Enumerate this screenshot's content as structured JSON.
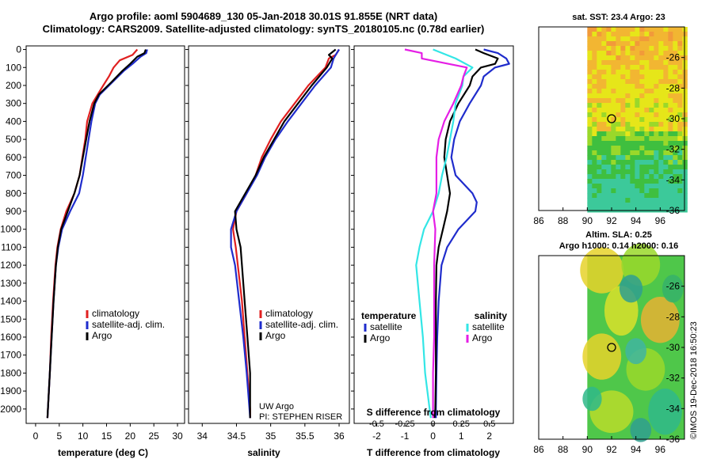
{
  "header": {
    "line1": "Argo profile: aoml 5904689_130 05-Jan-2018 30.01S 91.855E (NRT data)",
    "line2": "Climatology: CARS2009. Satellite-adjusted climatology: synTS_20180105.nc (0.78d earlier)"
  },
  "colors": {
    "climatology": "#e02020",
    "satellite": "#1f2ccc",
    "argo": "#000000",
    "cyan": "#33e6e6",
    "magenta": "#e51ee5"
  },
  "chart_data": [
    {
      "type": "line",
      "id": "temperature",
      "xlabel": "temperature (deg C)",
      "ylabel": "",
      "xlim": [
        -2,
        31.5
      ],
      "ylim": [
        2080,
        -20
      ],
      "xticks": [
        "0",
        "5",
        "10",
        "15",
        "20",
        "25",
        "30"
      ],
      "yticks": [
        "0",
        "100",
        "200",
        "300",
        "400",
        "500",
        "600",
        "700",
        "800",
        "900",
        "1000",
        "1100",
        "1200",
        "1300",
        "1400",
        "1500",
        "1600",
        "1700",
        "1800",
        "1900",
        "2000"
      ],
      "legend": [
        "climatology",
        "satellite-adj. clim.",
        "Argo"
      ],
      "series": [
        {
          "name": "climatology",
          "depth": [
            0,
            30,
            60,
            100,
            150,
            200,
            300,
            400,
            500,
            600,
            700,
            800,
            900,
            1000,
            1100,
            1200,
            1400,
            1600,
            1800,
            2000,
            2050
          ],
          "values": [
            21.5,
            20.5,
            17.8,
            16.5,
            15.5,
            14.3,
            12.0,
            10.9,
            10.5,
            9.9,
            9.3,
            8.2,
            6.5,
            5.3,
            4.6,
            4.2,
            3.7,
            3.3,
            3.0,
            2.6,
            2.5
          ]
        },
        {
          "name": "satellite-adj. clim.",
          "depth": [
            0,
            20,
            40,
            80,
            120,
            180,
            250,
            300,
            400,
            500,
            600,
            700,
            800,
            900,
            1000,
            1100,
            1200,
            1400,
            1600,
            1800,
            2000,
            2050
          ],
          "values": [
            23.6,
            23.4,
            22.2,
            20.5,
            18.6,
            16.3,
            13.6,
            12.6,
            11.8,
            11.2,
            10.6,
            10.0,
            9.2,
            7.3,
            5.6,
            4.8,
            4.3,
            3.8,
            3.4,
            3.0,
            2.6,
            2.5
          ]
        },
        {
          "name": "Argo",
          "depth": [
            0,
            20,
            40,
            80,
            120,
            180,
            250,
            300,
            400,
            500,
            600,
            700,
            800,
            900,
            1000,
            1100,
            1200,
            1400,
            1600,
            1800,
            2000,
            2050
          ],
          "values": [
            23.3,
            23.0,
            21.5,
            20.0,
            18.3,
            16.1,
            13.4,
            12.4,
            11.4,
            10.7,
            10.0,
            9.3,
            8.2,
            6.8,
            5.4,
            4.7,
            4.3,
            3.8,
            3.4,
            3.0,
            2.6,
            2.5
          ]
        }
      ]
    },
    {
      "type": "line",
      "id": "salinity",
      "xlabel": "salinity",
      "ylabel": "",
      "xlim": [
        33.8,
        36.15
      ],
      "ylim": [
        2080,
        -20
      ],
      "xticks": [
        "34",
        "34.5",
        "35",
        "35.5",
        "36"
      ],
      "legend": [
        "climatology",
        "satellite-adj. clim.",
        "Argo"
      ],
      "annotations": [
        "UW Argo",
        "PI: STEPHEN RISER"
      ],
      "series": [
        {
          "name": "climatology",
          "depth": [
            0,
            30,
            50,
            100,
            200,
            300,
            400,
            500,
            600,
            700,
            800,
            900,
            1000,
            1100,
            1200,
            1400,
            1600,
            1800,
            2000,
            2050
          ],
          "values": [
            36.0,
            35.95,
            35.85,
            35.8,
            35.55,
            35.35,
            35.15,
            35.0,
            34.87,
            34.78,
            34.65,
            34.5,
            34.45,
            34.49,
            34.52,
            34.58,
            34.62,
            34.66,
            34.7,
            34.7
          ]
        },
        {
          "name": "satellite-adj. clim.",
          "depth": [
            0,
            30,
            50,
            100,
            200,
            300,
            400,
            500,
            600,
            700,
            800,
            900,
            1000,
            1100,
            1200,
            1400,
            1600,
            1800,
            2000,
            2050
          ],
          "values": [
            36.0,
            35.95,
            35.92,
            35.88,
            35.65,
            35.45,
            35.25,
            35.07,
            34.92,
            34.8,
            34.65,
            34.5,
            34.42,
            34.42,
            34.48,
            34.54,
            34.6,
            34.65,
            34.69,
            34.7
          ]
        },
        {
          "name": "Argo",
          "depth": [
            0,
            30,
            50,
            100,
            200,
            300,
            400,
            500,
            600,
            700,
            800,
            900,
            1000,
            1100,
            1200,
            1400,
            1600,
            1800,
            2000,
            2050
          ],
          "values": [
            35.95,
            35.85,
            35.9,
            35.82,
            35.6,
            35.4,
            35.2,
            35.05,
            34.9,
            34.78,
            34.63,
            34.48,
            34.5,
            34.56,
            34.58,
            34.62,
            34.66,
            34.7,
            34.7,
            34.7
          ]
        }
      ]
    },
    {
      "type": "line",
      "id": "difference",
      "xlabel": "T difference from climatology",
      "xlabel_top": "S difference from climatology",
      "xlim": [
        -2.8,
        2.85
      ],
      "ylim": [
        2080,
        -20
      ],
      "xticks": [
        "-2",
        "-1",
        "0",
        "1",
        "2"
      ],
      "xticks_salinity": [
        "-0.5",
        "-0.25",
        "0",
        "0.25",
        "0.5"
      ],
      "legend_left_title": "temperature",
      "legend_right_title": "salinity",
      "legend": [
        "satellite",
        "Argo",
        "satellite",
        "Argo"
      ],
      "series": [
        {
          "name": "temperature satellite",
          "depth": [
            0,
            20,
            50,
            80,
            100,
            150,
            200,
            300,
            400,
            500,
            600,
            700,
            800,
            850,
            900,
            1000,
            1100,
            1200,
            1400,
            1600,
            1800,
            2000,
            2050
          ],
          "values": [
            1.8,
            2.3,
            2.6,
            2.7,
            2.2,
            1.8,
            1.7,
            1.3,
            0.95,
            0.75,
            0.65,
            0.8,
            1.4,
            1.55,
            1.5,
            0.9,
            0.5,
            0.3,
            0.2,
            0.15,
            0.12,
            0.1,
            0.1
          ]
        },
        {
          "name": "temperature Argo",
          "depth": [
            0,
            20,
            50,
            80,
            100,
            150,
            200,
            300,
            400,
            500,
            600,
            700,
            800,
            900,
            1000,
            1100,
            1200,
            1400,
            1600,
            1800,
            2000,
            2050
          ],
          "values": [
            1.5,
            1.8,
            2.3,
            2.2,
            1.7,
            1.4,
            1.3,
            0.9,
            0.6,
            0.45,
            0.4,
            0.5,
            0.6,
            0.5,
            0.35,
            0.2,
            0.12,
            0.1,
            0.1,
            0.1,
            0.08,
            0.05
          ]
        },
        {
          "name": "salinity satellite",
          "depth": [
            0,
            50,
            100,
            150,
            200,
            300,
            400,
            500,
            600,
            700,
            800,
            900,
            1000,
            1100,
            1200,
            1400,
            1600,
            1800,
            2000,
            2050
          ],
          "values": [
            0.0,
            0.2,
            0.35,
            0.27,
            0.26,
            0.2,
            0.18,
            0.15,
            0.12,
            0.08,
            0.05,
            0.0,
            -0.08,
            -0.12,
            -0.15,
            -0.12,
            -0.09,
            -0.07,
            -0.03,
            -0.02
          ]
        },
        {
          "name": "salinity Argo",
          "depth": [
            0,
            20,
            50,
            100,
            150,
            200,
            300,
            400,
            500,
            600,
            700,
            800,
            900,
            1000,
            1200,
            1400,
            1600,
            1800,
            2000,
            2050
          ],
          "values": [
            -0.25,
            -0.1,
            -0.1,
            0.3,
            0.27,
            0.25,
            0.18,
            0.1,
            0.05,
            0.03,
            0.03,
            0.03,
            0.0,
            0.02,
            0.01,
            0.01,
            0.01,
            0.0,
            0.0,
            0.0
          ]
        }
      ]
    },
    {
      "type": "heatmap",
      "id": "map-sst",
      "title": "sat. SST: 23.4 Argo: 23",
      "xlim": [
        86,
        98
      ],
      "ylim": [
        -36,
        -24
      ],
      "xticks": [
        "86",
        "88",
        "90",
        "92",
        "94",
        "96"
      ],
      "yticks": [
        "-26",
        "-28",
        "-30",
        "-32",
        "-34",
        "-36"
      ],
      "data_xrange": [
        90,
        98
      ],
      "profile_location": [
        92,
        -30
      ]
    },
    {
      "type": "heatmap",
      "id": "map-sla",
      "title_line1": "Altim. SLA: 0.25",
      "title_line2": "Argo h1000: 0.14 h2000: 0.16",
      "xlim": [
        86,
        98
      ],
      "ylim": [
        -36,
        -24
      ],
      "xticks": [
        "86",
        "88",
        "90",
        "92",
        "94",
        "96"
      ],
      "yticks": [
        "-26",
        "-28",
        "-30",
        "-32",
        "-34",
        "-36"
      ],
      "data_xrange": [
        90,
        98
      ],
      "profile_location": [
        92,
        -30
      ]
    }
  ],
  "credit": "©IMOS 19-Dec-2018 16:50:23"
}
